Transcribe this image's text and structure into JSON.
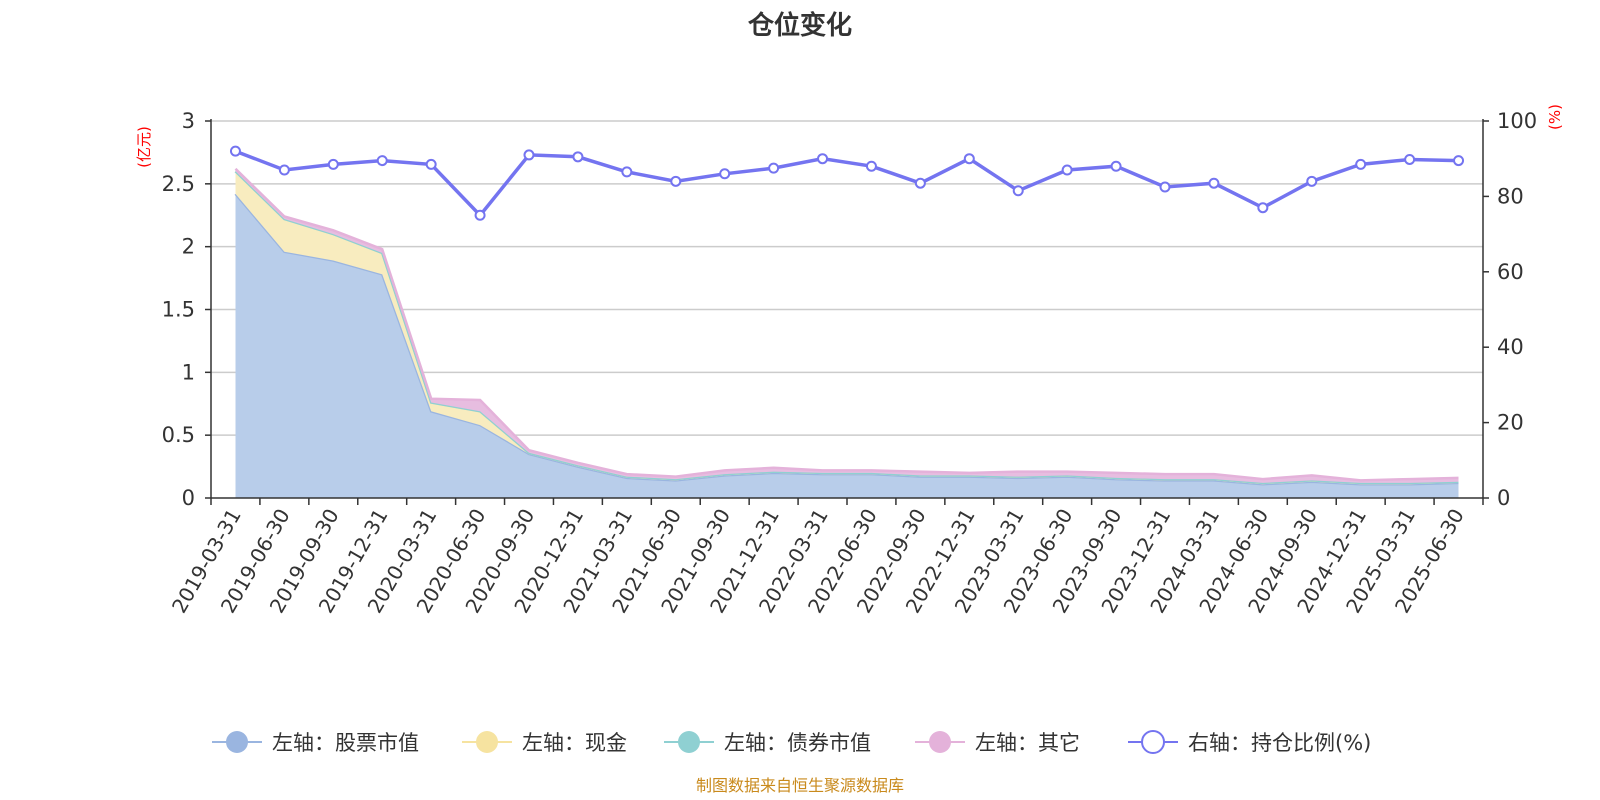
{
  "title": "仓位变化",
  "source": "制图数据来自恒生聚源数据库",
  "colors": {
    "stock": "#9ab5e0",
    "stock_fill": "#b8cdea",
    "cash": "#f6e3a0",
    "cash_fill": "#f8ecbf",
    "bond": "#8fd0d2",
    "other": "#e4b2da",
    "other_fill": "#e7bde0",
    "ratio": "#7474f0",
    "axis": "#333333",
    "grid": "#cccccc",
    "unit": "#ff0000"
  },
  "chart_data": {
    "type": "area",
    "title": "仓位变化",
    "x": [
      "2019-03-31",
      "2019-06-30",
      "2019-09-30",
      "2019-12-31",
      "2020-03-31",
      "2020-06-30",
      "2020-09-30",
      "2020-12-31",
      "2021-03-31",
      "2021-06-30",
      "2021-09-30",
      "2021-12-31",
      "2022-03-31",
      "2022-06-30",
      "2022-09-30",
      "2022-12-31",
      "2023-03-31",
      "2023-06-30",
      "2023-09-30",
      "2023-12-31",
      "2024-03-31",
      "2024-06-30",
      "2024-09-30",
      "2024-12-31",
      "2025-03-31",
      "2025-06-30"
    ],
    "y_left": {
      "unit": "(亿元)",
      "ylim": [
        0,
        3
      ],
      "ticks": [
        "0",
        "0.5",
        "1",
        "1.5",
        "2",
        "2.5",
        "3"
      ],
      "tick_values": [
        0,
        0.5,
        1,
        1.5,
        2,
        2.5,
        3
      ]
    },
    "y_right": {
      "unit": "(%)",
      "ylim": [
        0,
        100
      ],
      "ticks": [
        "0",
        "20",
        "40",
        "60",
        "80",
        "100"
      ],
      "tick_values": [
        0,
        20,
        40,
        60,
        80,
        100
      ]
    },
    "grid": true,
    "legend_position": "bottom",
    "series": [
      {
        "name": "左轴：股票市值",
        "axis": "left",
        "stacked": true,
        "values": [
          2.42,
          1.96,
          1.89,
          1.78,
          0.69,
          0.58,
          0.35,
          0.25,
          0.16,
          0.14,
          0.18,
          0.2,
          0.19,
          0.19,
          0.17,
          0.17,
          0.16,
          0.17,
          0.15,
          0.14,
          0.14,
          0.11,
          0.13,
          0.11,
          0.11,
          0.12
        ]
      },
      {
        "name": "左轴：现金",
        "axis": "left",
        "stacked": true,
        "values": [
          0.18,
          0.26,
          0.21,
          0.17,
          0.07,
          0.11,
          0.01,
          0.01,
          0.01,
          0.01,
          0.01,
          0.01,
          0.01,
          0.01,
          0.01,
          0.01,
          0.01,
          0.01,
          0.01,
          0.01,
          0.01,
          0.01,
          0.01,
          0.01,
          0.01,
          0.01
        ]
      },
      {
        "name": "左轴：债券市值",
        "axis": "left",
        "stacked": true,
        "values": [
          0,
          0,
          0,
          0,
          0,
          0,
          0,
          0,
          0,
          0,
          0,
          0,
          0,
          0,
          0,
          0,
          0,
          0,
          0,
          0,
          0,
          0,
          0,
          0,
          0,
          0
        ]
      },
      {
        "name": "左轴：其它",
        "axis": "left",
        "stacked": true,
        "values": [
          0.02,
          0.02,
          0.03,
          0.03,
          0.03,
          0.09,
          0.02,
          0.02,
          0.02,
          0.02,
          0.03,
          0.03,
          0.02,
          0.02,
          0.03,
          0.02,
          0.04,
          0.03,
          0.04,
          0.04,
          0.04,
          0.03,
          0.04,
          0.02,
          0.03,
          0.03
        ]
      },
      {
        "name": "右轴：持仓比例(%)",
        "axis": "right",
        "type": "line",
        "values": [
          92,
          87,
          88.5,
          89.5,
          88.5,
          75,
          91,
          90.5,
          86.5,
          84,
          86,
          87.5,
          90,
          88,
          83.5,
          90,
          81.5,
          87,
          88,
          82.5,
          83.5,
          77,
          84,
          88.5,
          89.8,
          89.5
        ]
      }
    ]
  }
}
